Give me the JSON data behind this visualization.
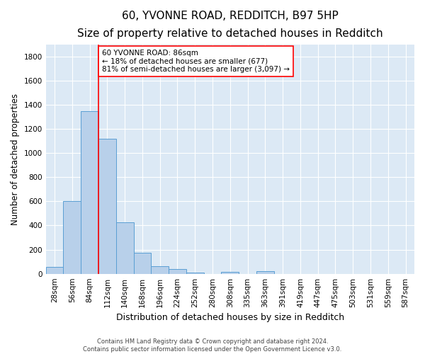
{
  "title": "60, YVONNE ROAD, REDDITCH, B97 5HP",
  "subtitle": "Size of property relative to detached houses in Redditch",
  "xlabel": "Distribution of detached houses by size in Redditch",
  "ylabel": "Number of detached properties",
  "bar_labels": [
    "28sqm",
    "56sqm",
    "84sqm",
    "112sqm",
    "140sqm",
    "168sqm",
    "196sqm",
    "224sqm",
    "252sqm",
    "280sqm",
    "308sqm",
    "335sqm",
    "363sqm",
    "391sqm",
    "419sqm",
    "447sqm",
    "475sqm",
    "503sqm",
    "531sqm",
    "559sqm",
    "587sqm"
  ],
  "bar_values": [
    57,
    600,
    1345,
    1120,
    425,
    175,
    60,
    38,
    12,
    0,
    15,
    0,
    22,
    0,
    0,
    0,
    0,
    0,
    0,
    0,
    0
  ],
  "bar_color": "#b8d0ea",
  "bar_edge_color": "#5a9fd4",
  "vline_x": 2.5,
  "vline_color": "red",
  "annotation_text": "60 YVONNE ROAD: 86sqm\n← 18% of detached houses are smaller (677)\n81% of semi-detached houses are larger (3,097) →",
  "annotation_box_color": "white",
  "annotation_box_edge_color": "red",
  "ylim": [
    0,
    1900
  ],
  "yticks": [
    0,
    200,
    400,
    600,
    800,
    1000,
    1200,
    1400,
    1600,
    1800
  ],
  "background_color": "#dce9f5",
  "grid_color": "white",
  "footer": "Contains HM Land Registry data © Crown copyright and database right 2024.\nContains public sector information licensed under the Open Government Licence v3.0.",
  "title_fontsize": 11,
  "subtitle_fontsize": 9.5,
  "xlabel_fontsize": 9,
  "ylabel_fontsize": 8.5,
  "tick_fontsize": 7.5,
  "annotation_fontsize": 7.5,
  "footer_fontsize": 6
}
